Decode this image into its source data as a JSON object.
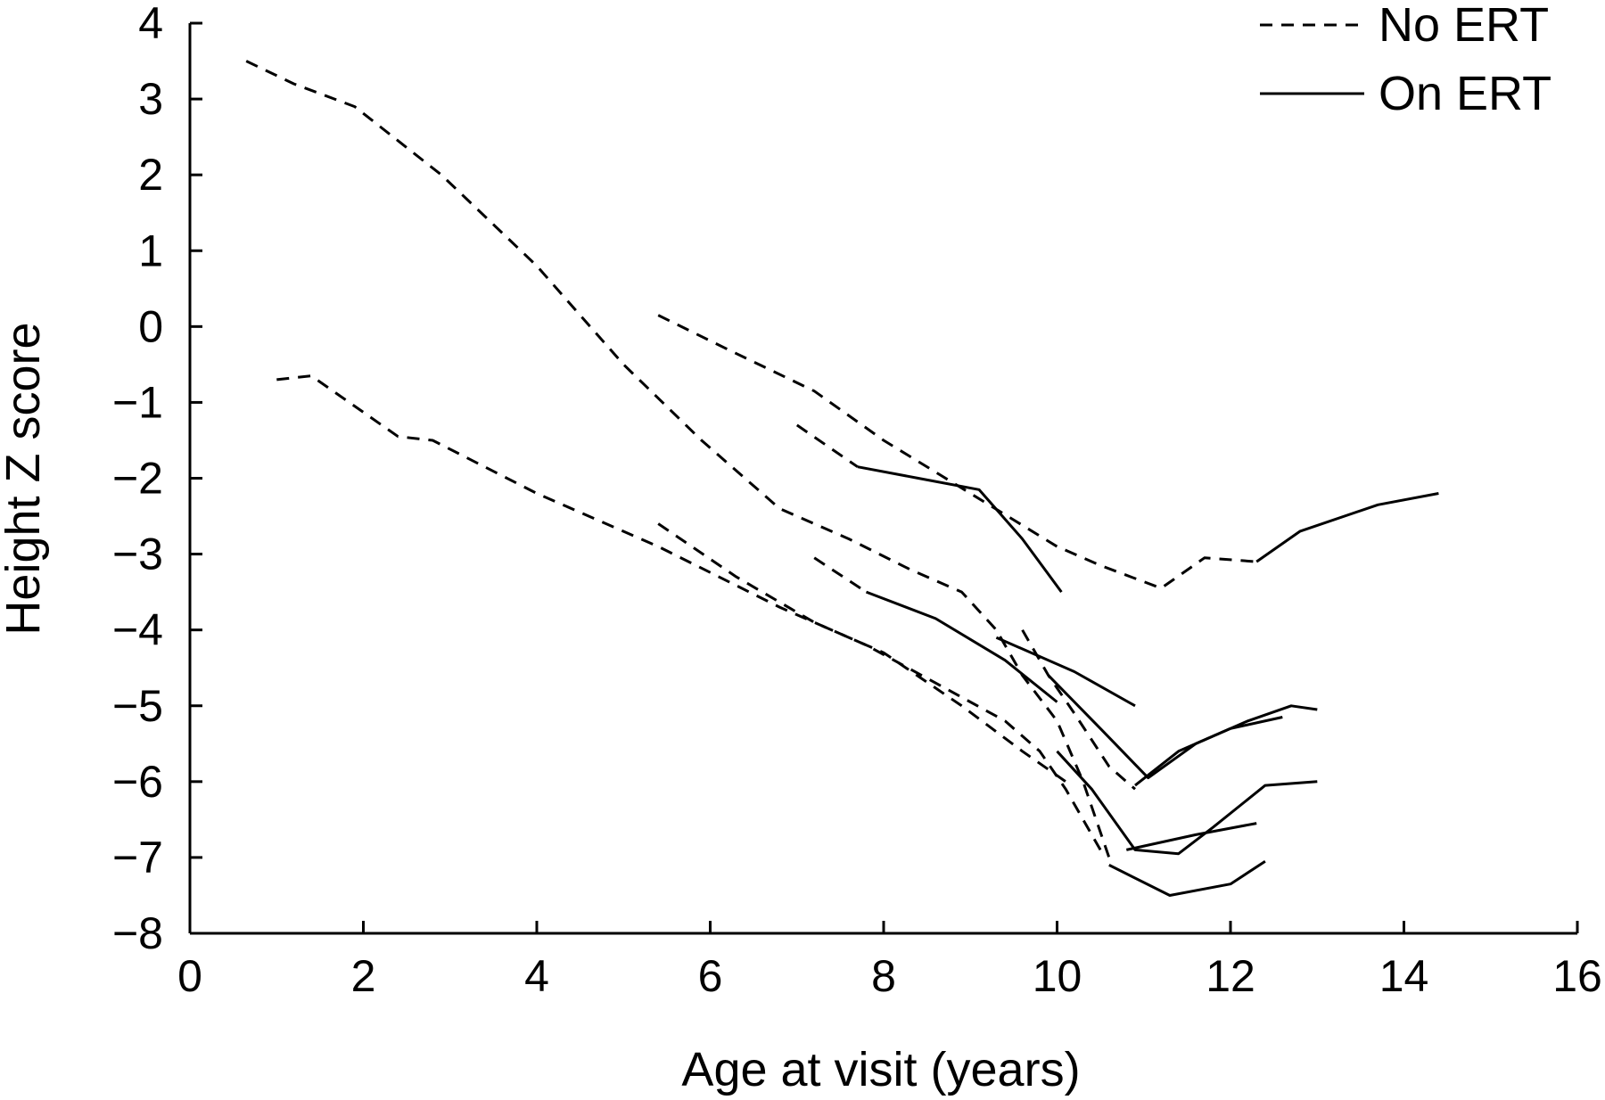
{
  "chart_data": {
    "type": "line",
    "xlabel": "Age at visit (years)",
    "ylabel": "Height Z score",
    "xlim": [
      0,
      16
    ],
    "ylim": [
      -8,
      4
    ],
    "xticks": [
      0,
      2,
      4,
      6,
      8,
      10,
      12,
      14,
      16
    ],
    "yticks": [
      4,
      3,
      2,
      1,
      0,
      -1,
      -2,
      -3,
      -4,
      -5,
      -6,
      -7,
      -8
    ],
    "xtick_labels": [
      "0",
      "2",
      "4",
      "6",
      "8",
      "10",
      "12",
      "14",
      "16"
    ],
    "ytick_labels": [
      "4",
      "3",
      "2",
      "1",
      "0",
      "−1",
      "−2",
      "−3",
      "−4",
      "−5",
      "−6",
      "−7",
      "−8"
    ],
    "legend": {
      "position": "top-right",
      "entries": [
        {
          "label": "No ERT",
          "style": "dashed"
        },
        {
          "label": "On ERT",
          "style": "solid"
        }
      ]
    },
    "grid": false,
    "series": [
      {
        "style": "dashed",
        "x": [
          0.65,
          1.2,
          1.9,
          2.9,
          4.0,
          5.0,
          5.9,
          6.8,
          7.6,
          8.3,
          8.9,
          9.3,
          9.6,
          10.0,
          10.3,
          10.6
        ],
        "y": [
          3.5,
          3.2,
          2.9,
          2.0,
          0.8,
          -0.5,
          -1.5,
          -2.4,
          -2.8,
          -3.2,
          -3.5,
          -4.0,
          -4.6,
          -5.2,
          -6.0,
          -7.0
        ]
      },
      {
        "style": "dashed",
        "x": [
          5.4,
          6.2,
          7.2,
          8.0,
          9.0,
          10.0,
          10.5,
          11.2,
          11.7,
          12.3
        ],
        "y": [
          0.15,
          -0.3,
          -0.85,
          -1.5,
          -2.2,
          -2.9,
          -3.15,
          -3.45,
          -3.05,
          -3.1
        ]
      },
      {
        "style": "dashed",
        "x": [
          1.0,
          1.4,
          2.4,
          2.8,
          4.0,
          5.4,
          6.8,
          7.8,
          8.6,
          9.4,
          9.8,
          10.1,
          10.5
        ],
        "y": [
          -0.7,
          -0.65,
          -1.45,
          -1.5,
          -2.2,
          -2.9,
          -3.7,
          -4.2,
          -4.7,
          -5.2,
          -5.6,
          -6.1,
          -6.9
        ]
      },
      {
        "style": "dashed",
        "x": [
          5.4,
          6.3,
          7.2,
          8.0,
          8.9,
          9.6,
          10.1
        ],
        "y": [
          -2.6,
          -3.3,
          -3.9,
          -4.3,
          -5.0,
          -5.6,
          -6.0
        ]
      },
      {
        "style": "dashed",
        "x": [
          7.0,
          7.7
        ],
        "y": [
          -1.3,
          -1.85
        ]
      },
      {
        "style": "dashed",
        "x": [
          7.2,
          7.8
        ],
        "y": [
          -3.05,
          -3.5
        ]
      },
      {
        "style": "dashed",
        "x": [
          9.6,
          9.9,
          10.2,
          10.6,
          10.9
        ],
        "y": [
          -4.0,
          -4.6,
          -5.1,
          -5.8,
          -6.1
        ]
      },
      {
        "style": "solid",
        "x": [
          7.7,
          8.4,
          9.1,
          9.6,
          10.05
        ],
        "y": [
          -1.85,
          -2.0,
          -2.15,
          -2.8,
          -3.5
        ]
      },
      {
        "style": "solid",
        "x": [
          12.3,
          12.8,
          13.7,
          14.4
        ],
        "y": [
          -3.1,
          -2.7,
          -2.35,
          -2.2
        ]
      },
      {
        "style": "solid",
        "x": [
          7.8,
          8.6,
          9.4,
          10.0
        ],
        "y": [
          -3.5,
          -3.85,
          -4.4,
          -4.95
        ]
      },
      {
        "style": "solid",
        "x": [
          9.3,
          10.2,
          10.9
        ],
        "y": [
          -4.1,
          -4.55,
          -5.0
        ]
      },
      {
        "style": "solid",
        "x": [
          9.9,
          10.5,
          11.05,
          11.6,
          12.2,
          12.7,
          13.0
        ],
        "y": [
          -4.6,
          -5.3,
          -5.95,
          -5.5,
          -5.2,
          -5.0,
          -5.05
        ]
      },
      {
        "style": "solid",
        "x": [
          10.9,
          11.4,
          12.0,
          12.6
        ],
        "y": [
          -6.05,
          -5.6,
          -5.3,
          -5.15
        ]
      },
      {
        "style": "solid",
        "x": [
          10.0,
          10.4,
          10.9,
          11.4,
          11.8,
          12.4,
          13.0
        ],
        "y": [
          -5.6,
          -6.1,
          -6.9,
          -6.95,
          -6.6,
          -6.05,
          -6.0
        ]
      },
      {
        "style": "solid",
        "x": [
          10.8,
          11.6,
          12.3
        ],
        "y": [
          -6.9,
          -6.7,
          -6.55
        ]
      },
      {
        "style": "solid",
        "x": [
          10.6,
          11.3,
          12.0,
          12.4
        ],
        "y": [
          -7.1,
          -7.5,
          -7.35,
          -7.05
        ]
      }
    ]
  }
}
